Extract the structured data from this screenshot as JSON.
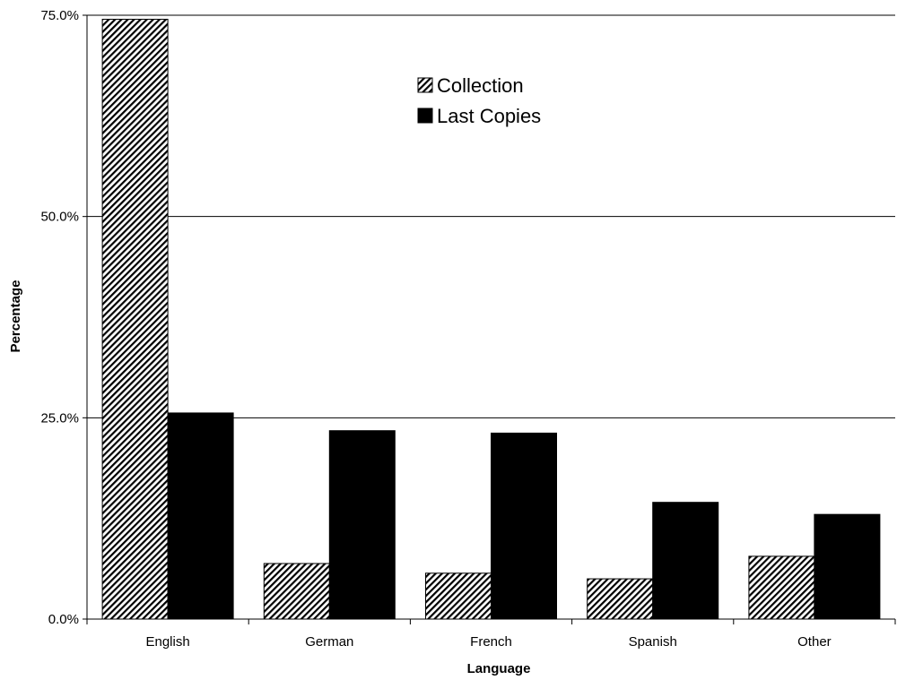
{
  "chart_data": {
    "type": "bar",
    "title": "",
    "xlabel": "Language",
    "ylabel": "Percentage",
    "categories": [
      "English",
      "German",
      "French",
      "Spanish",
      "Other"
    ],
    "series": [
      {
        "name": "Collection",
        "values": [
          74.5,
          6.9,
          5.7,
          5.0,
          7.8
        ],
        "pattern": "diagonal-hatch"
      },
      {
        "name": "Last Copies",
        "values": [
          25.6,
          23.4,
          23.1,
          14.5,
          13.0
        ],
        "pattern": "solid-black"
      }
    ],
    "ylim": [
      0,
      75
    ],
    "yticks": [
      0,
      25,
      50,
      75
    ],
    "ytick_labels": [
      "0.0%",
      "25.0%",
      "50.0%",
      "75.0%"
    ],
    "grid": true,
    "legend_position": "top-center"
  }
}
